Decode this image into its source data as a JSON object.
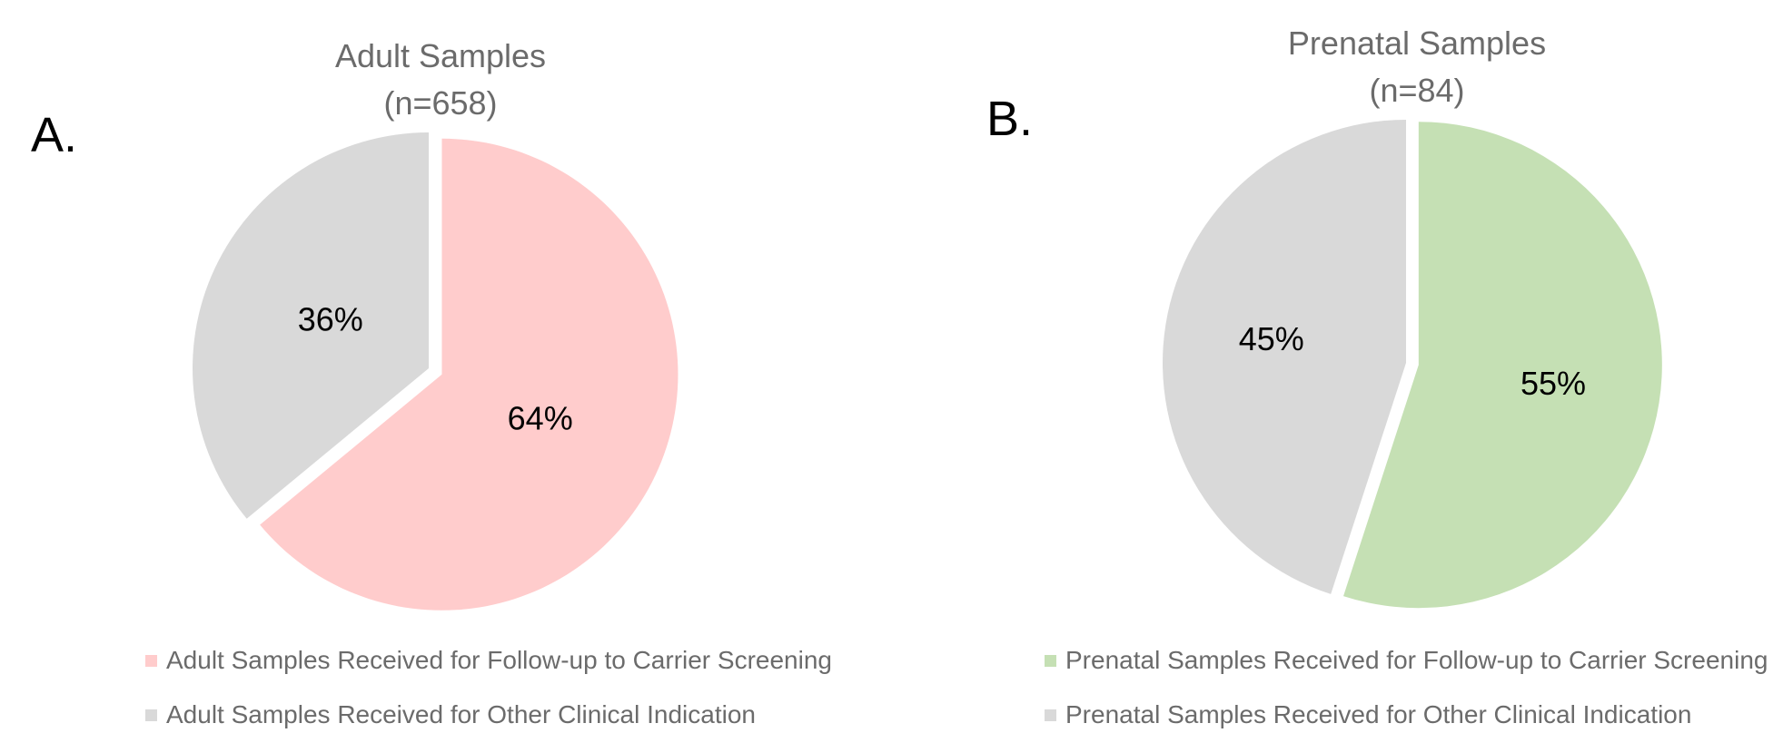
{
  "chart_data": [
    {
      "panel": "A.",
      "type": "pie",
      "title": "Adult Samples",
      "subtitle": "(n=658)",
      "slices": [
        {
          "label": "Adult Samples Received for Follow-up to Carrier Screening",
          "value": 64,
          "display": "64%",
          "color": "#ffcccc"
        },
        {
          "label": "Adult Samples Received for Other Clinical Indication",
          "value": 36,
          "display": "36%",
          "color": "#d9d9d9"
        }
      ],
      "legend_position": "bottom"
    },
    {
      "panel": "B.",
      "type": "pie",
      "title": "Prenatal Samples",
      "subtitle": "(n=84)",
      "slices": [
        {
          "label": "Prenatal Samples Received for Follow-up to Carrier Screening",
          "value": 55,
          "display": "55%",
          "color": "#c5e0b4"
        },
        {
          "label": "Prenatal Samples Received for Other Clinical Indication",
          "value": 45,
          "display": "45%",
          "color": "#d9d9d9"
        }
      ],
      "legend_position": "bottom"
    }
  ]
}
